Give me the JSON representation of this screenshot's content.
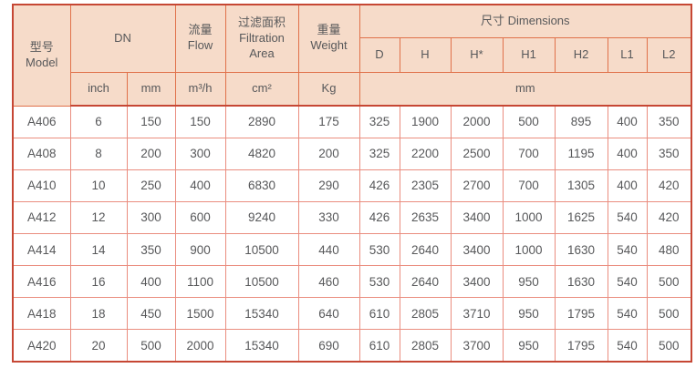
{
  "table": {
    "header": {
      "model": {
        "zh": "型号",
        "en": "Model"
      },
      "dn": "DN",
      "flow": {
        "zh": "流量",
        "en": "Flow"
      },
      "filtration": {
        "zh": "过滤面积",
        "en1": "Filtration",
        "en2": "Area"
      },
      "weight": {
        "zh": "重量",
        "en": "Weight"
      },
      "dimensions": "尺寸 Dimensions",
      "dim_cols": [
        "D",
        "H",
        "H*",
        "H1",
        "H2",
        "L1",
        "L2"
      ],
      "units": {
        "inch": "inch",
        "mm": "mm",
        "flow": "m³/h",
        "area": "cm²",
        "weight": "Kg",
        "dim": "mm"
      }
    },
    "column_keys": [
      "model",
      "dn-inch",
      "dn-mm",
      "flow",
      "filtration-area",
      "weight",
      "d",
      "h",
      "h-star",
      "h1",
      "h2",
      "l1",
      "l2"
    ],
    "rows": [
      [
        "A406",
        "6",
        "150",
        "150",
        "2890",
        "175",
        "325",
        "1900",
        "2000",
        "500",
        "895",
        "400",
        "350"
      ],
      [
        "A408",
        "8",
        "200",
        "300",
        "4820",
        "200",
        "325",
        "2200",
        "2500",
        "700",
        "1195",
        "400",
        "350"
      ],
      [
        "A410",
        "10",
        "250",
        "400",
        "6830",
        "290",
        "426",
        "2305",
        "2700",
        "700",
        "1305",
        "400",
        "420"
      ],
      [
        "A412",
        "12",
        "300",
        "600",
        "9240",
        "330",
        "426",
        "2635",
        "3400",
        "1000",
        "1625",
        "540",
        "420"
      ],
      [
        "A414",
        "14",
        "350",
        "900",
        "10500",
        "440",
        "530",
        "2640",
        "3400",
        "1000",
        "1630",
        "540",
        "480"
      ],
      [
        "A416",
        "16",
        "400",
        "1100",
        "10500",
        "460",
        "530",
        "2640",
        "3400",
        "950",
        "1630",
        "540",
        "500"
      ],
      [
        "A418",
        "18",
        "450",
        "1500",
        "15340",
        "640",
        "610",
        "2805",
        "3710",
        "950",
        "1795",
        "540",
        "500"
      ],
      [
        "A420",
        "20",
        "500",
        "2000",
        "15340",
        "690",
        "610",
        "2805",
        "3700",
        "950",
        "1795",
        "540",
        "500"
      ]
    ],
    "colors": {
      "header_bg": "#f6dbc9",
      "outer_border": "#c64734",
      "header_border": "#e0714a",
      "body_border": "#ea8d7f",
      "text": "#57585a"
    }
  }
}
